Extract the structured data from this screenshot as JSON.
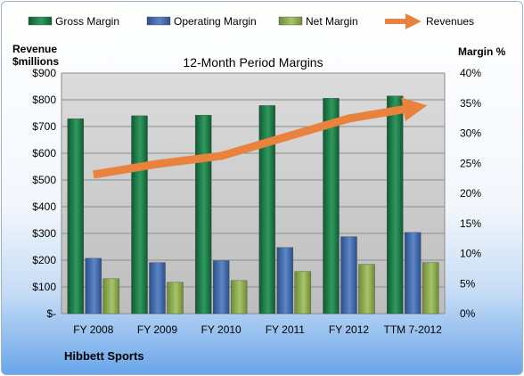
{
  "chart_data": {
    "type": "bar",
    "title": "12-Month Period Margins",
    "company": "Hibbett Sports",
    "left_axis_title": [
      "Revenue",
      "$millions"
    ],
    "right_axis_title": "Margin %",
    "categories": [
      "FY 2008",
      "FY 2009",
      "FY 2010",
      "FY 2011",
      "FY 2012",
      "TTM 7-2012"
    ],
    "left_ticks": [
      "$-",
      "$100",
      "$200",
      "$300",
      "$400",
      "$500",
      "$600",
      "$700",
      "$800",
      "$900"
    ],
    "right_ticks": [
      "0%",
      "5%",
      "10%",
      "15%",
      "20%",
      "25%",
      "30%",
      "35%",
      "40%"
    ],
    "left_range": [
      0,
      900
    ],
    "right_range": [
      0,
      40
    ],
    "grid": true,
    "legend_position": "top",
    "series": [
      {
        "name": "Gross Margin",
        "axis": "right",
        "kind": "bar",
        "color": "#1e7a48",
        "values": [
          32.4,
          32.9,
          33.0,
          34.6,
          35.8,
          36.2
        ]
      },
      {
        "name": "Operating Margin",
        "axis": "right",
        "kind": "bar",
        "color": "#3f66a8",
        "values": [
          9.2,
          8.5,
          8.8,
          11.0,
          12.8,
          13.5
        ]
      },
      {
        "name": "Net Margin",
        "axis": "right",
        "kind": "bar",
        "color": "#8aa84a",
        "values": [
          5.8,
          5.2,
          5.5,
          7.0,
          8.2,
          8.5
        ]
      },
      {
        "name": "Revenues",
        "axis": "left",
        "kind": "arrow-line",
        "color": "#e8823c",
        "values": [
          520,
          560,
          590,
          660,
          730,
          770
        ]
      }
    ]
  }
}
